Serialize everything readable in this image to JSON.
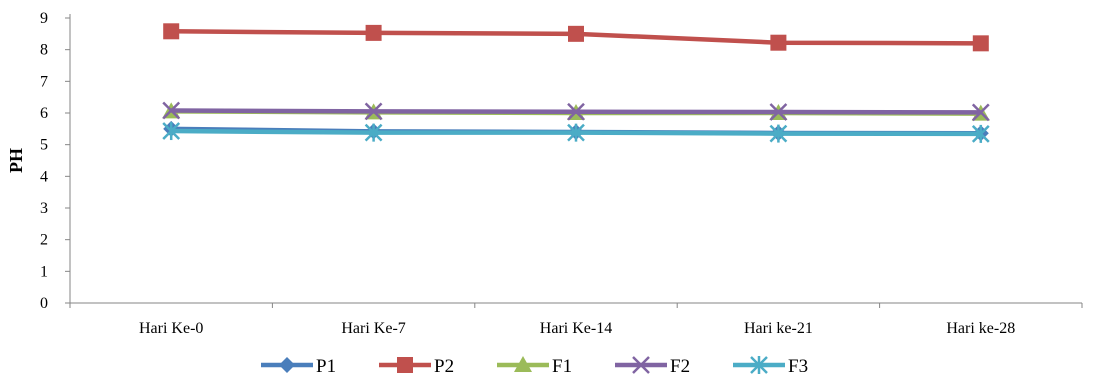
{
  "chart_data": {
    "type": "line",
    "title": "",
    "xlabel": "",
    "ylabel": "PH",
    "ylim": [
      0,
      9
    ],
    "yticks": [
      "0",
      "1",
      "2",
      "3",
      "4",
      "5",
      "6",
      "7",
      "8",
      "9"
    ],
    "categories": [
      "Hari Ke-0",
      "Hari Ke-7",
      "Hari Ke-14",
      "Hari ke-21",
      "Hari ke-28"
    ],
    "grid": false,
    "legend_position": "bottom",
    "series": [
      {
        "name": "P1",
        "color": "#4A7EBB",
        "marker": "diamond",
        "values": [
          5.5,
          5.42,
          5.4,
          5.37,
          5.36
        ]
      },
      {
        "name": "P2",
        "color": "#C0504D",
        "marker": "square",
        "values": [
          8.58,
          8.53,
          8.5,
          8.22,
          8.2
        ]
      },
      {
        "name": "F1",
        "color": "#9BBB59",
        "marker": "triangle",
        "values": [
          6.05,
          6.02,
          6.0,
          6.0,
          5.98
        ]
      },
      {
        "name": "F2",
        "color": "#8064A2",
        "marker": "x",
        "values": [
          6.08,
          6.05,
          6.04,
          6.03,
          6.02
        ]
      },
      {
        "name": "F3",
        "color": "#4BACC6",
        "marker": "star",
        "values": [
          5.43,
          5.38,
          5.38,
          5.35,
          5.34
        ]
      }
    ]
  }
}
